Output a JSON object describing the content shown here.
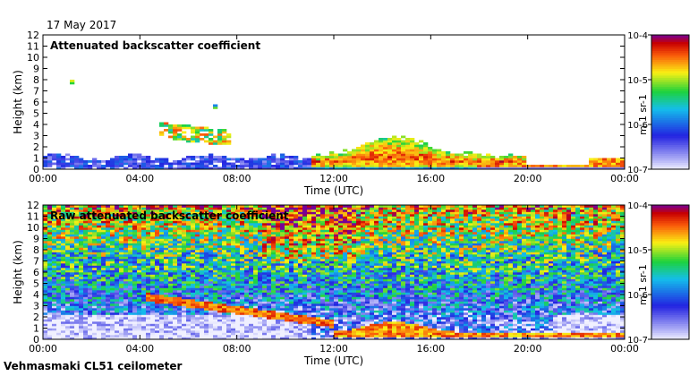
{
  "figure": {
    "date": "17 May 2017",
    "instrument": "Vehmasmaki CL51 ceilometer"
  },
  "chart_data": [
    {
      "type": "heatmap",
      "title": "Attenuated backscatter coefficient",
      "xlabel": "Time (UTC)",
      "ylabel": "Height (km)",
      "xlim": [
        0,
        24
      ],
      "ylim": [
        0,
        12
      ],
      "x_ticks": [
        0,
        4,
        8,
        12,
        16,
        20,
        24
      ],
      "x_tick_labels": [
        "00:00",
        "04:00",
        "08:00",
        "12:00",
        "16:00",
        "20:00",
        "00:00"
      ],
      "y_ticks": [
        0,
        1,
        2,
        3,
        4,
        5,
        6,
        7,
        8,
        9,
        10,
        11,
        12
      ],
      "y_tick_labels": [
        "0",
        "1",
        "2",
        "3",
        "4",
        "5",
        "6",
        "7",
        "8",
        "9",
        "10",
        "11",
        "12"
      ],
      "colorbar": {
        "scale": "log",
        "range": [
          1e-07,
          0.0001
        ],
        "tick_labels": [
          "10-7",
          "10-6",
          "10-5",
          "10-4"
        ],
        "label": "m-1 sr-1"
      },
      "features": [
        {
          "kind": "boundary_layer_aerosol",
          "t": [
            0,
            11
          ],
          "h": [
            0,
            1.5
          ],
          "log_beta": -6.3
        },
        {
          "kind": "elevated_layer",
          "t": [
            1.2,
            1.3
          ],
          "h": [
            7.3,
            7.9
          ],
          "log_beta": -5.2
        },
        {
          "kind": "elevated_layer",
          "t": [
            4.8,
            7.8
          ],
          "h": [
            2.8,
            4.2
          ],
          "log_beta": -5.0
        },
        {
          "kind": "elevated_layer",
          "t": [
            7.0,
            7.2
          ],
          "h": [
            5.5,
            5.7
          ],
          "log_beta": -5.3
        },
        {
          "kind": "cloud_layer",
          "t": [
            11,
            20
          ],
          "h": [
            0.2,
            3.3
          ],
          "log_beta": -4.4
        },
        {
          "kind": "low_layer",
          "t": [
            18,
            24
          ],
          "h": [
            0.3,
            1.5
          ],
          "log_beta": -5.4
        }
      ]
    },
    {
      "type": "heatmap",
      "title": "Raw attenuated backscatter coefficient",
      "xlabel": "Time (UTC)",
      "ylabel": "Height (km)",
      "xlim": [
        0,
        24
      ],
      "ylim": [
        0,
        12
      ],
      "x_ticks": [
        0,
        4,
        8,
        12,
        16,
        20,
        24
      ],
      "x_tick_labels": [
        "00:00",
        "04:00",
        "08:00",
        "12:00",
        "16:00",
        "20:00",
        "00:00"
      ],
      "y_ticks": [
        0,
        1,
        2,
        3,
        4,
        5,
        6,
        7,
        8,
        9,
        10,
        11,
        12
      ],
      "y_tick_labels": [
        "0",
        "1",
        "2",
        "3",
        "4",
        "5",
        "6",
        "7",
        "8",
        "9",
        "10",
        "11",
        "12"
      ],
      "colorbar": {
        "scale": "log",
        "range": [
          1e-07,
          0.0001
        ],
        "tick_labels": [
          "10-7",
          "10-6",
          "10-5",
          "10-4"
        ],
        "label": "m-1 sr-1"
      },
      "features": [
        {
          "kind": "noise_background",
          "t": [
            0,
            24
          ],
          "h": [
            0,
            12
          ],
          "log_beta": -5.5
        },
        {
          "kind": "descending_layer",
          "t": [
            4.2,
            12
          ],
          "h": [
            3.8,
            1.4
          ],
          "log_beta": -4.5
        },
        {
          "kind": "cloud_layer",
          "t": [
            12,
            24
          ],
          "h": [
            0.2,
            1.5
          ],
          "log_beta": -4.6
        }
      ]
    }
  ]
}
